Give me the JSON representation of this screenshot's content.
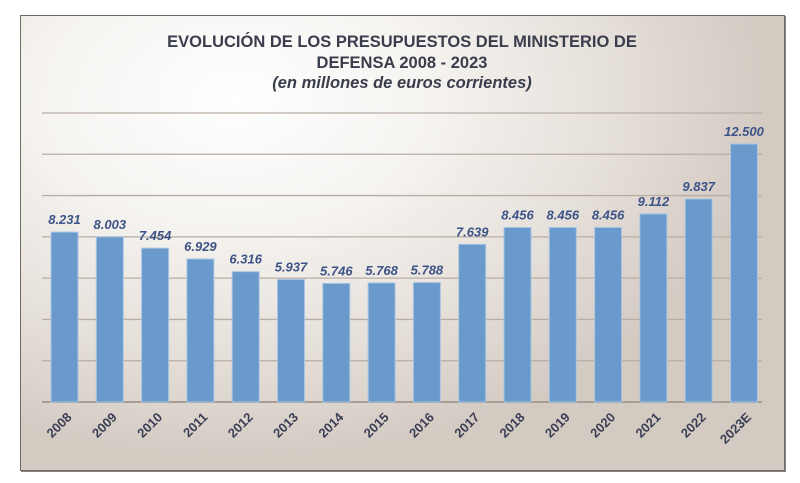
{
  "chart_data": {
    "type": "bar",
    "title": "EVOLUCIÓN DE LOS PRESUPUESTOS DEL MINISTERIO DE DEFENSA 2008 - 2023",
    "title_lines": [
      "EVOLUCIÓN DE LOS PRESUPUESTOS DEL MINISTERIO DE",
      "DEFENSA 2008 - 2023"
    ],
    "subtitle": "(en millones de euros corrientes)",
    "xlabel": "",
    "ylabel": "",
    "categories": [
      "2008",
      "2009",
      "2010",
      "2011",
      "2012",
      "2013",
      "2014",
      "2015",
      "2016",
      "2017",
      "2018",
      "2019",
      "2020",
      "2021",
      "2022",
      "2023E"
    ],
    "values": [
      8231,
      8003,
      7454,
      6929,
      6316,
      5937,
      5746,
      5768,
      5788,
      7639,
      8456,
      8456,
      8456,
      9112,
      9837,
      12500
    ],
    "value_labels": [
      "8.231",
      "8.003",
      "7.454",
      "6.929",
      "6.316",
      "5.937",
      "5.746",
      "5.768",
      "5.788",
      "7.639",
      "8.456",
      "8.456",
      "8.456",
      "9.112",
      "9.837",
      "12.500"
    ],
    "ylim": [
      0,
      14000
    ],
    "grid_step": 2000,
    "grid": true,
    "y_tick_labels_shown": false,
    "legend": "none",
    "colors": {
      "bar": "#6a9acb",
      "value_label": "#3d5387",
      "title": "#3a3d4c",
      "tick_label": "#3a3e55"
    }
  }
}
